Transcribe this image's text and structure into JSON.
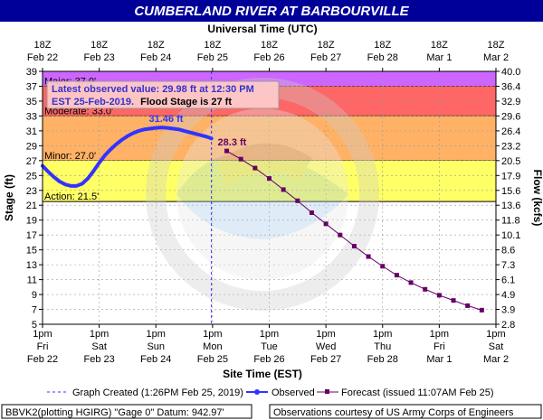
{
  "title": "CUMBERLAND RIVER AT BARBOURVILLE",
  "top_axis_title": "Universal Time (UTC)",
  "bottom_axis_title": "Site Time (EST)",
  "left_axis_title": "Stage (ft)",
  "right_axis_title": "Flow (kcfs)",
  "latest_box": {
    "line1": "Latest observed value: 29.98 ft at 12:30 PM",
    "line2a": "EST 25-Feb-2019.",
    "line2b": "Flood Stage is 27 ft"
  },
  "legend": {
    "graph_created": "Graph Created (1:26PM Feb 25, 2019)",
    "observed": "Observed",
    "forecast": "Forecast (issued 11:07AM Feb 25)"
  },
  "footer": {
    "left": "BBVK2(plotting HGIRG) \"Gage 0\" Datum: 942.97'",
    "right": "Observations courtesy of US Army Corps of Engineers"
  },
  "watermark_text": "NATIONAL OCEANIC AND ATMOSPHERIC ADMINISTRATION U.S. DEPARTMENT OF COMMERCE NOAA",
  "colors": {
    "title_bg": "#000099",
    "major": "#cc66ff",
    "moderate": "#ff6666",
    "minor": "#ffb266",
    "action": "#ffff66",
    "observed": "#3333ff",
    "forecast": "#660066",
    "latest_box_bg": "#ffcccc",
    "latest_box_text": "#3333cc"
  },
  "chart_data": {
    "type": "line",
    "x_unit": "days since Feb 22 13:00 EST",
    "xlim": [
      0,
      8.0
    ],
    "ylim": [
      5,
      39
    ],
    "y_ticks": [
      5,
      7,
      9,
      11,
      13,
      15,
      17,
      19,
      21,
      23,
      25,
      27,
      29,
      31,
      33,
      35,
      37,
      39
    ],
    "flow_ticks": [
      "2.8",
      "3.9",
      "4.9",
      "6.1",
      "7.3",
      "8.6",
      "10.1",
      "11.8",
      "13.6",
      "15.6",
      "17.9",
      "20.5",
      "23.2",
      "26.4",
      "29.6",
      "32.9",
      "36.4",
      "40.0"
    ],
    "top_ticks": [
      {
        "x": 0,
        "a": "18Z",
        "b": "Feb 22"
      },
      {
        "x": 1,
        "a": "18Z",
        "b": "Feb 23"
      },
      {
        "x": 2,
        "a": "18Z",
        "b": "Feb 24"
      },
      {
        "x": 3,
        "a": "18Z",
        "b": "Feb 25"
      },
      {
        "x": 4,
        "a": "18Z",
        "b": "Feb 26"
      },
      {
        "x": 5,
        "a": "18Z",
        "b": "Feb 27"
      },
      {
        "x": 6,
        "a": "18Z",
        "b": "Feb 28"
      },
      {
        "x": 7,
        "a": "18Z",
        "b": "Mar 1"
      },
      {
        "x": 8,
        "a": "18Z",
        "b": "Mar 2"
      }
    ],
    "bottom_ticks": [
      {
        "x": 0,
        "a": "1pm",
        "b": "Fri",
        "c": "Feb 22"
      },
      {
        "x": 1,
        "a": "1pm",
        "b": "Sat",
        "c": "Feb 23"
      },
      {
        "x": 2,
        "a": "1pm",
        "b": "Sun",
        "c": "Feb 24"
      },
      {
        "x": 3,
        "a": "1pm",
        "b": "Mon",
        "c": "Feb 25"
      },
      {
        "x": 4,
        "a": "1pm",
        "b": "Tue",
        "c": "Feb 26"
      },
      {
        "x": 5,
        "a": "1pm",
        "b": "Wed",
        "c": "Feb 27"
      },
      {
        "x": 6,
        "a": "1pm",
        "b": "Thu",
        "c": "Feb 28"
      },
      {
        "x": 7,
        "a": "1pm",
        "b": "Fri",
        "c": "Mar 1"
      },
      {
        "x": 8,
        "a": "1pm",
        "b": "Sat",
        "c": "Mar 2"
      }
    ],
    "flood_categories": [
      {
        "name": "Major",
        "label": "Major: 37.0'",
        "from": 37,
        "to": 39
      },
      {
        "name": "Moderate",
        "label": "Moderate: 33.0'",
        "from": 33,
        "to": 37
      },
      {
        "name": "Minor",
        "label": "Minor: 27.0'",
        "from": 27,
        "to": 33
      },
      {
        "name": "Action",
        "label": "Action: 21.5'",
        "from": 21.5,
        "to": 27
      }
    ],
    "graph_created_x": 2.98,
    "observed": {
      "name": "Observed",
      "x": [
        0,
        0.1,
        0.2,
        0.3,
        0.4,
        0.5,
        0.6,
        0.7,
        0.8,
        0.9,
        1.0,
        1.1,
        1.2,
        1.3,
        1.4,
        1.5,
        1.6,
        1.7,
        1.8,
        1.9,
        2.0,
        2.1,
        2.2,
        2.3,
        2.4,
        2.5,
        2.6,
        2.7,
        2.8,
        2.9,
        2.98
      ],
      "y": [
        26.3,
        25.5,
        24.8,
        24.2,
        23.8,
        23.6,
        23.6,
        23.9,
        24.6,
        25.6,
        26.7,
        27.7,
        28.5,
        29.2,
        29.8,
        30.3,
        30.7,
        31.0,
        31.2,
        31.3,
        31.4,
        31.46,
        31.4,
        31.3,
        31.2,
        31.0,
        30.8,
        30.6,
        30.4,
        30.2,
        29.98
      ]
    },
    "peak_label": {
      "x": 2.1,
      "y": 31.46,
      "text": "31.46 ft"
    },
    "forecast": {
      "name": "Forecast",
      "x": [
        3.25,
        3.5,
        3.75,
        4.0,
        4.25,
        4.5,
        4.75,
        5.0,
        5.25,
        5.5,
        5.75,
        6.0,
        6.25,
        6.5,
        6.75,
        7.0,
        7.25,
        7.5,
        7.75
      ],
      "y": [
        28.3,
        27.2,
        26.0,
        24.6,
        23.1,
        21.6,
        20.0,
        18.5,
        17.0,
        15.5,
        14.1,
        12.8,
        11.6,
        10.6,
        9.7,
        8.9,
        8.2,
        7.5,
        6.9
      ]
    },
    "forecast_label": {
      "x": 3.25,
      "y": 28.3,
      "text": "28.3 ft"
    }
  }
}
